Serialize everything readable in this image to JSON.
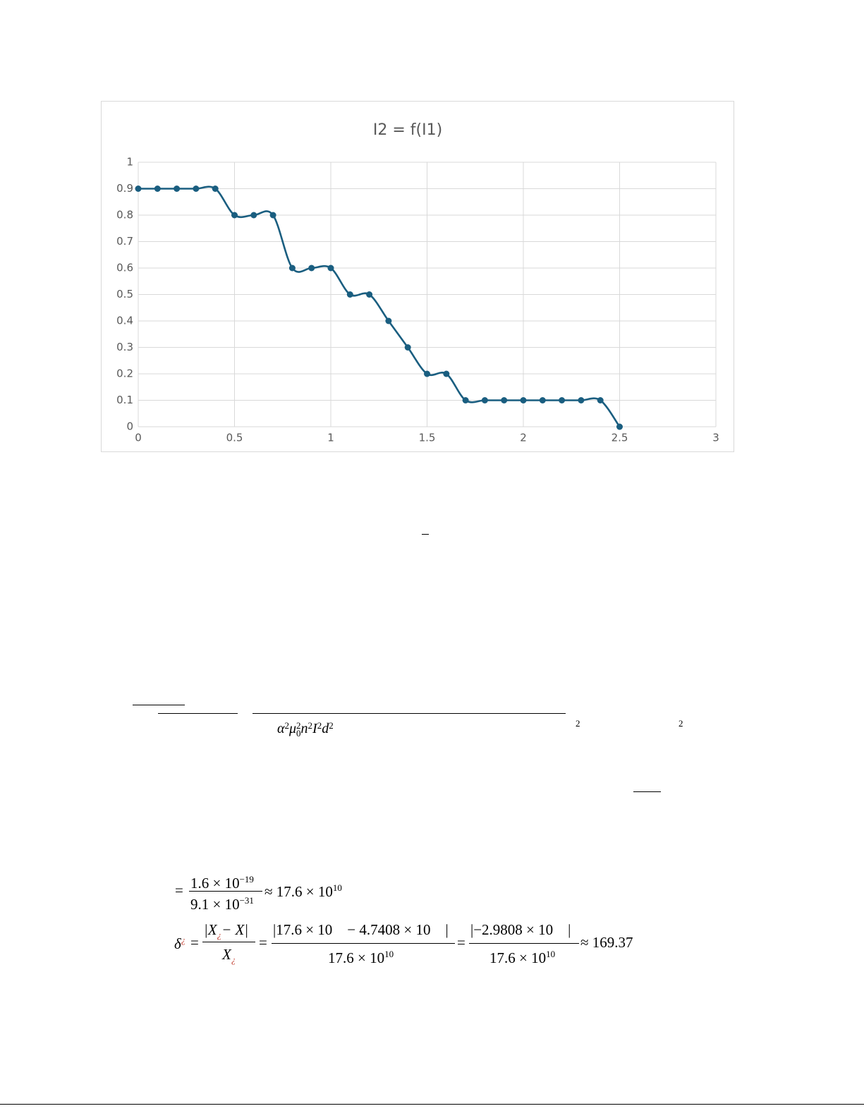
{
  "chart_data": {
    "type": "line",
    "title": "I2 = f(I1)",
    "x": [
      0,
      0.1,
      0.2,
      0.3,
      0.4,
      0.5,
      0.6,
      0.7,
      0.8,
      0.9,
      1,
      1.1,
      1.2,
      1.3,
      1.4,
      1.5,
      1.6,
      1.7,
      1.8,
      1.9,
      2,
      2.1,
      2.2,
      2.3,
      2.4,
      2.5
    ],
    "series": [
      {
        "color": "#1a5e80",
        "values": [
          0.9,
          0.9,
          0.9,
          0.9,
          0.9,
          0.8,
          0.8,
          0.8,
          0.6,
          0.6,
          0.6,
          0.5,
          0.5,
          0.4,
          0.3,
          0.2,
          0.2,
          0.1,
          0.1,
          0.1,
          0.1,
          0.1,
          0.1,
          0.1,
          0.1,
          0
        ]
      }
    ],
    "xlim": [
      0,
      3
    ],
    "xticks": [
      0,
      0.5,
      1,
      1.5,
      2,
      2.5,
      3
    ],
    "ylim": [
      0,
      1
    ],
    "yticks": [
      0,
      0.1,
      0.2,
      0.3,
      0.4,
      0.5,
      0.6,
      0.7,
      0.8,
      0.9,
      1
    ],
    "grid": true,
    "smooth": true,
    "markers": true
  },
  "formula_1": {
    "denominator": [
      {
        "base": "α",
        "sup": "2"
      },
      {
        "base": "μ",
        "sup": "2",
        "sub": "0"
      },
      {
        "base": "n",
        "sup": "2"
      },
      {
        "base": "I",
        "sup": "2"
      },
      {
        "base": "d",
        "sup": "2"
      }
    ],
    "exponents": [
      "2",
      "2"
    ]
  },
  "formula_2": {
    "equals": "=",
    "numerator": "1.6 × 10",
    "numerator_exp": "−19",
    "denominator": "9.1 × 10",
    "denominator_exp": "−31",
    "approx": "≈ 17.6 × 10",
    "approx_exp": "10"
  },
  "formula_3": {
    "lhs": "δ",
    "lhs_sup": "¿",
    "equals": "=",
    "num1": "|X",
    "num1_sub": "¿",
    "num1_rest": "− X|",
    "den1": "X",
    "den1_sub": "¿",
    "num2": "|17.6 × 10    − 4.7408 × 10    |",
    "den2": "17.6 × 10",
    "den2_exp": "10",
    "num3": "|−2.9808 × 10    |",
    "den3": "17.6 × 10",
    "den3_exp": "10",
    "result": "≈ 169.37"
  }
}
